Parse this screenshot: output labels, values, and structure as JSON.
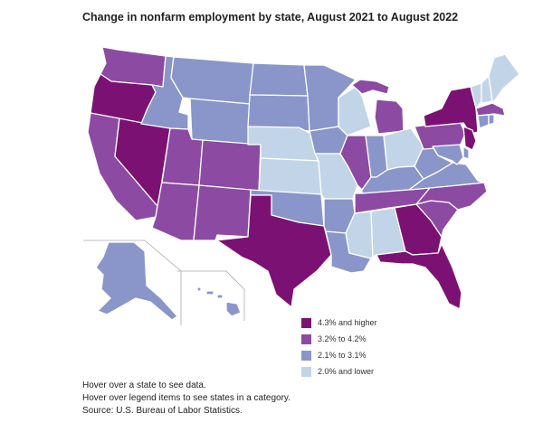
{
  "title": "Change in nonfarm employment by state, August 2021 to August 2022",
  "colors": {
    "cat1": "#7b1273",
    "cat2": "#8c4aa3",
    "cat3": "#8a96c9",
    "cat4": "#c2d5e8"
  },
  "legend": [
    {
      "label": "4.3% and higher",
      "color": "#7b1273"
    },
    {
      "label": "3.2% to 4.2%",
      "color": "#8c4aa3"
    },
    {
      "label": "2.1% to 3.1%",
      "color": "#8a96c9"
    },
    {
      "label": "2.0% and lower",
      "color": "#c2d5e8"
    }
  ],
  "notes": {
    "line1": "Hover over a state to see data.",
    "line2": "Hover over legend items to see states in a category.",
    "line3": "Source: U.S. Bureau of Labor Statistics."
  },
  "state_categories": {
    "WA": "cat2",
    "OR": "cat1",
    "CA": "cat2",
    "NV": "cat1",
    "ID": "cat3",
    "MT": "cat3",
    "WY": "cat3",
    "UT": "cat2",
    "AZ": "cat2",
    "CO": "cat2",
    "NM": "cat2",
    "ND": "cat3",
    "SD": "cat3",
    "NE": "cat4",
    "KS": "cat4",
    "OK": "cat3",
    "TX": "cat1",
    "MN": "cat3",
    "IA": "cat3",
    "MO": "cat4",
    "AR": "cat3",
    "LA": "cat3",
    "WI": "cat4",
    "IL": "cat2",
    "MI": "cat2",
    "IN": "cat3",
    "OH": "cat4",
    "KY": "cat3",
    "TN": "cat2",
    "MS": "cat4",
    "AL": "cat4",
    "GA": "cat1",
    "FL": "cat1",
    "SC": "cat2",
    "NC": "cat2",
    "VA": "cat3",
    "WV": "cat3",
    "PA": "cat2",
    "NY": "cat1",
    "VT": "cat4",
    "NH": "cat4",
    "ME": "cat4",
    "MA": "cat2",
    "CT": "cat3",
    "RI": "cat3",
    "NJ": "cat1",
    "DE": "cat3",
    "MD": "cat3",
    "AK": "cat3",
    "HI": "cat3"
  }
}
